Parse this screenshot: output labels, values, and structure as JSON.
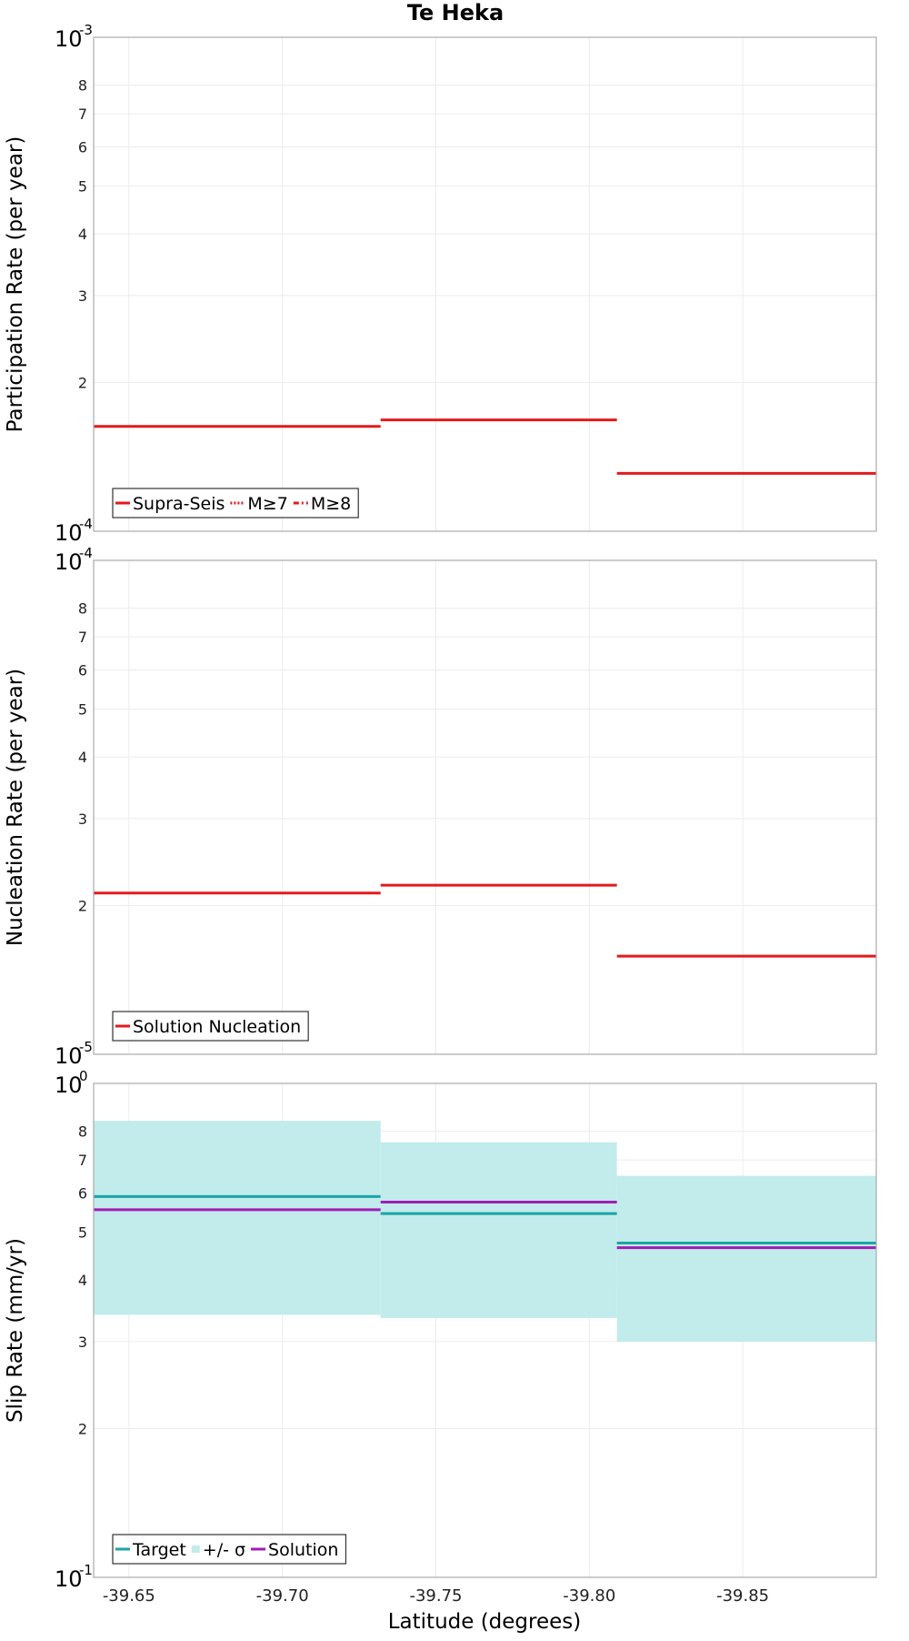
{
  "title": "Te Heka",
  "x_axis": {
    "label": "Latitude (degrees)",
    "ticks": [
      -39.65,
      -39.7,
      -39.75,
      -39.8,
      -39.85
    ],
    "tick_labels": [
      "-39.65",
      "-39.70",
      "-39.75",
      "-39.80",
      "-39.85"
    ],
    "range": [
      -39.6385,
      -39.8935
    ],
    "direction": "decreasing left-to-right"
  },
  "chart_data": [
    {
      "type": "line",
      "title": "Te Heka",
      "ylabel": "Participation Rate (per year)",
      "yscale": "log",
      "ylim": [
        0.0001,
        0.001
      ],
      "grid": true,
      "legend_position": "bottom-left",
      "legend": [
        {
          "label": "Supra-Seis",
          "style": "solid",
          "color": "#e31a1c"
        },
        {
          "label": "M≥7",
          "style": "dotted",
          "color": "#e31a1c"
        },
        {
          "label": "M≥8",
          "style": "dashdot",
          "color": "#e31a1c"
        }
      ],
      "series": [
        {
          "name": "Supra-Seis",
          "segments": [
            {
              "x0": -39.6385,
              "x1": -39.732,
              "y": 0.000163
            },
            {
              "x0": -39.732,
              "x1": -39.809,
              "y": 0.000168
            },
            {
              "x0": -39.809,
              "x1": -39.8935,
              "y": 0.000131
            }
          ]
        }
      ]
    },
    {
      "type": "line",
      "ylabel": "Nucleation Rate (per year)",
      "yscale": "log",
      "ylim": [
        1e-05,
        0.0001
      ],
      "grid": true,
      "legend_position": "bottom-left",
      "legend": [
        {
          "label": "Solution Nucleation",
          "style": "solid",
          "color": "#e31a1c"
        }
      ],
      "series": [
        {
          "name": "Solution Nucleation",
          "segments": [
            {
              "x0": -39.6385,
              "x1": -39.732,
              "y": 2.12e-05
            },
            {
              "x0": -39.732,
              "x1": -39.809,
              "y": 2.2e-05
            },
            {
              "x0": -39.809,
              "x1": -39.8935,
              "y": 1.58e-05
            }
          ]
        }
      ]
    },
    {
      "type": "line",
      "ylabel": "Slip Rate (mm/yr)",
      "yscale": "log",
      "ylim": [
        0.1,
        1
      ],
      "grid": true,
      "legend_position": "bottom-left",
      "legend": [
        {
          "label": "Target",
          "style": "solid",
          "color": "#1aa5a5"
        },
        {
          "label": "+/- σ",
          "style": "band",
          "color": "#c2ebeb"
        },
        {
          "label": "Solution",
          "style": "solid",
          "color": "#a21cb5"
        }
      ],
      "bands": [
        {
          "x0": -39.6385,
          "x1": -39.732,
          "lo": 0.34,
          "hi": 0.84
        },
        {
          "x0": -39.732,
          "x1": -39.809,
          "lo": 0.335,
          "hi": 0.76
        },
        {
          "x0": -39.809,
          "x1": -39.8935,
          "lo": 0.3,
          "hi": 0.65
        }
      ],
      "series": [
        {
          "name": "Target",
          "segments": [
            {
              "x0": -39.6385,
              "x1": -39.732,
              "y": 0.59
            },
            {
              "x0": -39.732,
              "x1": -39.809,
              "y": 0.545
            },
            {
              "x0": -39.809,
              "x1": -39.8935,
              "y": 0.475
            }
          ]
        },
        {
          "name": "Solution",
          "segments": [
            {
              "x0": -39.6385,
              "x1": -39.732,
              "y": 0.555
            },
            {
              "x0": -39.732,
              "x1": -39.809,
              "y": 0.575
            },
            {
              "x0": -39.809,
              "x1": -39.8935,
              "y": 0.465
            }
          ]
        }
      ]
    }
  ],
  "y_ticks": {
    "participation": {
      "major": [
        {
          "base": "10",
          "exp": "-4",
          "v": 0.0001
        },
        {
          "base": "10",
          "exp": "-3",
          "v": 0.001
        }
      ],
      "minor": [
        {
          "l": "2",
          "v": 0.0002
        },
        {
          "l": "3",
          "v": 0.0003
        },
        {
          "l": "4",
          "v": 0.0004
        },
        {
          "l": "5",
          "v": 0.0005
        },
        {
          "l": "6",
          "v": 0.0006
        },
        {
          "l": "7",
          "v": 0.0007
        },
        {
          "l": "8",
          "v": 0.0008
        }
      ]
    },
    "nucleation": {
      "major": [
        {
          "base": "10",
          "exp": "-5",
          "v": 1e-05
        },
        {
          "base": "10",
          "exp": "-4",
          "v": 0.0001
        }
      ],
      "minor": [
        {
          "l": "2",
          "v": 2e-05
        },
        {
          "l": "3",
          "v": 3e-05
        },
        {
          "l": "4",
          "v": 4e-05
        },
        {
          "l": "5",
          "v": 5e-05
        },
        {
          "l": "6",
          "v": 6e-05
        },
        {
          "l": "7",
          "v": 7e-05
        },
        {
          "l": "8",
          "v": 8e-05
        }
      ]
    },
    "slip": {
      "major": [
        {
          "base": "10",
          "exp": "-1",
          "v": 0.1
        },
        {
          "base": "10",
          "exp": "0",
          "v": 1
        }
      ],
      "minor": [
        {
          "l": "2",
          "v": 0.2
        },
        {
          "l": "3",
          "v": 0.3
        },
        {
          "l": "4",
          "v": 0.4
        },
        {
          "l": "5",
          "v": 0.5
        },
        {
          "l": "6",
          "v": 0.6
        },
        {
          "l": "7",
          "v": 0.7
        },
        {
          "l": "8",
          "v": 0.8
        }
      ]
    }
  },
  "colors": {
    "supra": "#e31a1c",
    "target": "#1aa5a5",
    "band": "#c2ebeb",
    "solution": "#a21cb5",
    "grid": "#ececec",
    "frame": "#aaaaaa"
  }
}
